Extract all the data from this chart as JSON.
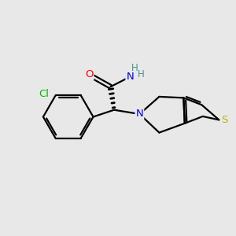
{
  "background_color": "#e8e8e8",
  "atom_colors": {
    "C": "#000000",
    "N": "#0000ff",
    "O": "#ff0000",
    "S": "#b8b800",
    "Cl": "#00bb00",
    "H": "#4a9090"
  },
  "bond_color": "#000000",
  "bond_width": 1.6,
  "figsize": [
    3.0,
    3.0
  ],
  "dpi": 100
}
